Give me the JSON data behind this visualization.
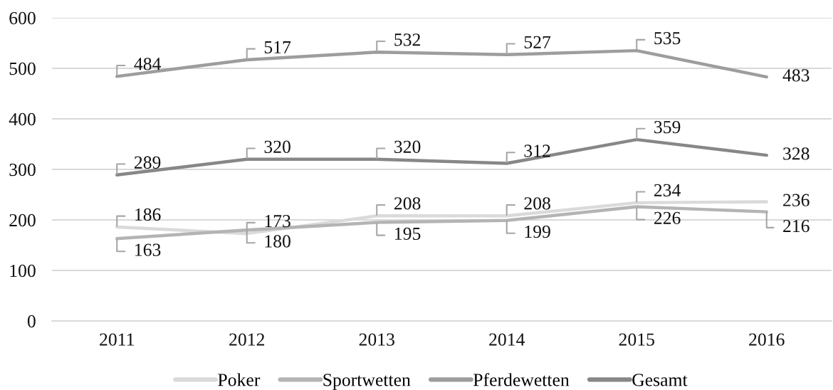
{
  "chart_data": {
    "type": "line",
    "categories": [
      "2011",
      "2012",
      "2013",
      "2014",
      "2015",
      "2016"
    ],
    "series": [
      {
        "name": "Poker",
        "color": "#dadada",
        "values": [
          186,
          173,
          208,
          208,
          234,
          236
        ]
      },
      {
        "name": "Sportwetten",
        "color": "#b4b4b4",
        "values": [
          163,
          180,
          195,
          199,
          226,
          216
        ]
      },
      {
        "name": "Pferdewetten",
        "color": "#9d9d9d",
        "values": [
          484,
          517,
          532,
          527,
          535,
          483
        ]
      },
      {
        "name": "Gesamt",
        "color": "#878787",
        "values": [
          289,
          320,
          320,
          312,
          359,
          328
        ]
      }
    ],
    "ylim": [
      0,
      600
    ],
    "yticks": [
      0,
      100,
      200,
      300,
      400,
      500,
      600
    ],
    "grid": "y",
    "legend": "bottom",
    "marker": "none",
    "line_style": "solid",
    "data_labels": true
  }
}
